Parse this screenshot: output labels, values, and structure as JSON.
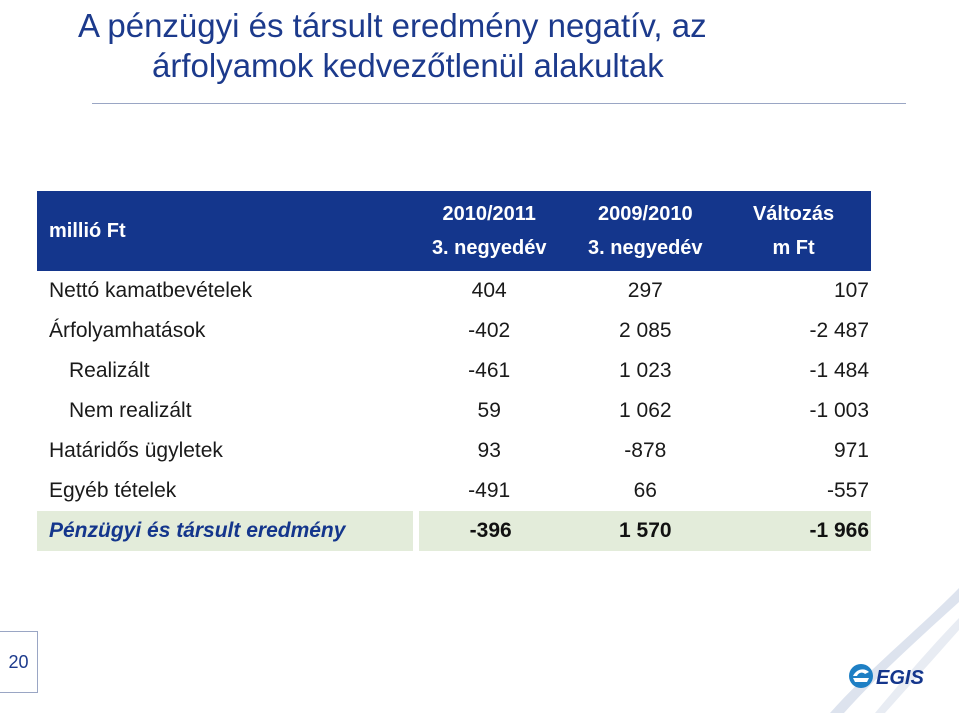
{
  "page": {
    "title_line1": "A pénzügyi és társult eredmény negatív, az",
    "title_line2": "árfolyamok kedvezőtlenül alakultak",
    "page_number": "20",
    "logo_text": "EGIS"
  },
  "table": {
    "unit_label": "millió Ft",
    "col1_line1": "2010/2011",
    "col1_line2": "3. negyedév",
    "col2_line1": "2009/2010",
    "col2_line2": "3. negyedév",
    "col3_line1": "Változás",
    "col3_line2": "m Ft",
    "rows": [
      {
        "label": "Nettó kamatbevételek",
        "v1": "404",
        "v2": "297",
        "v3": "107"
      },
      {
        "label": "Árfolyamhatások",
        "v1": "-402",
        "v2": "2 085",
        "v3": "-2 487"
      },
      {
        "label": "Realizált",
        "v1": "-461",
        "v2": "1 023",
        "v3": "-1 484"
      },
      {
        "label": "Nem realizált",
        "v1": "59",
        "v2": "1 062",
        "v3": "-1 003"
      },
      {
        "label": "Határidős ügyletek",
        "v1": "93",
        "v2": "-878",
        "v3": "971"
      },
      {
        "label": "Egyéb tételek",
        "v1": "-491",
        "v2": "66",
        "v3": "-557"
      },
      {
        "label": "Pénzügyi és társult eredmény",
        "v1": "-396",
        "v2": "1 570",
        "v3": "-1 966"
      }
    ]
  },
  "colors": {
    "header_bg": "#14368c",
    "title_color": "#1c3a8c",
    "total_row_bg": "#e3ecda"
  }
}
